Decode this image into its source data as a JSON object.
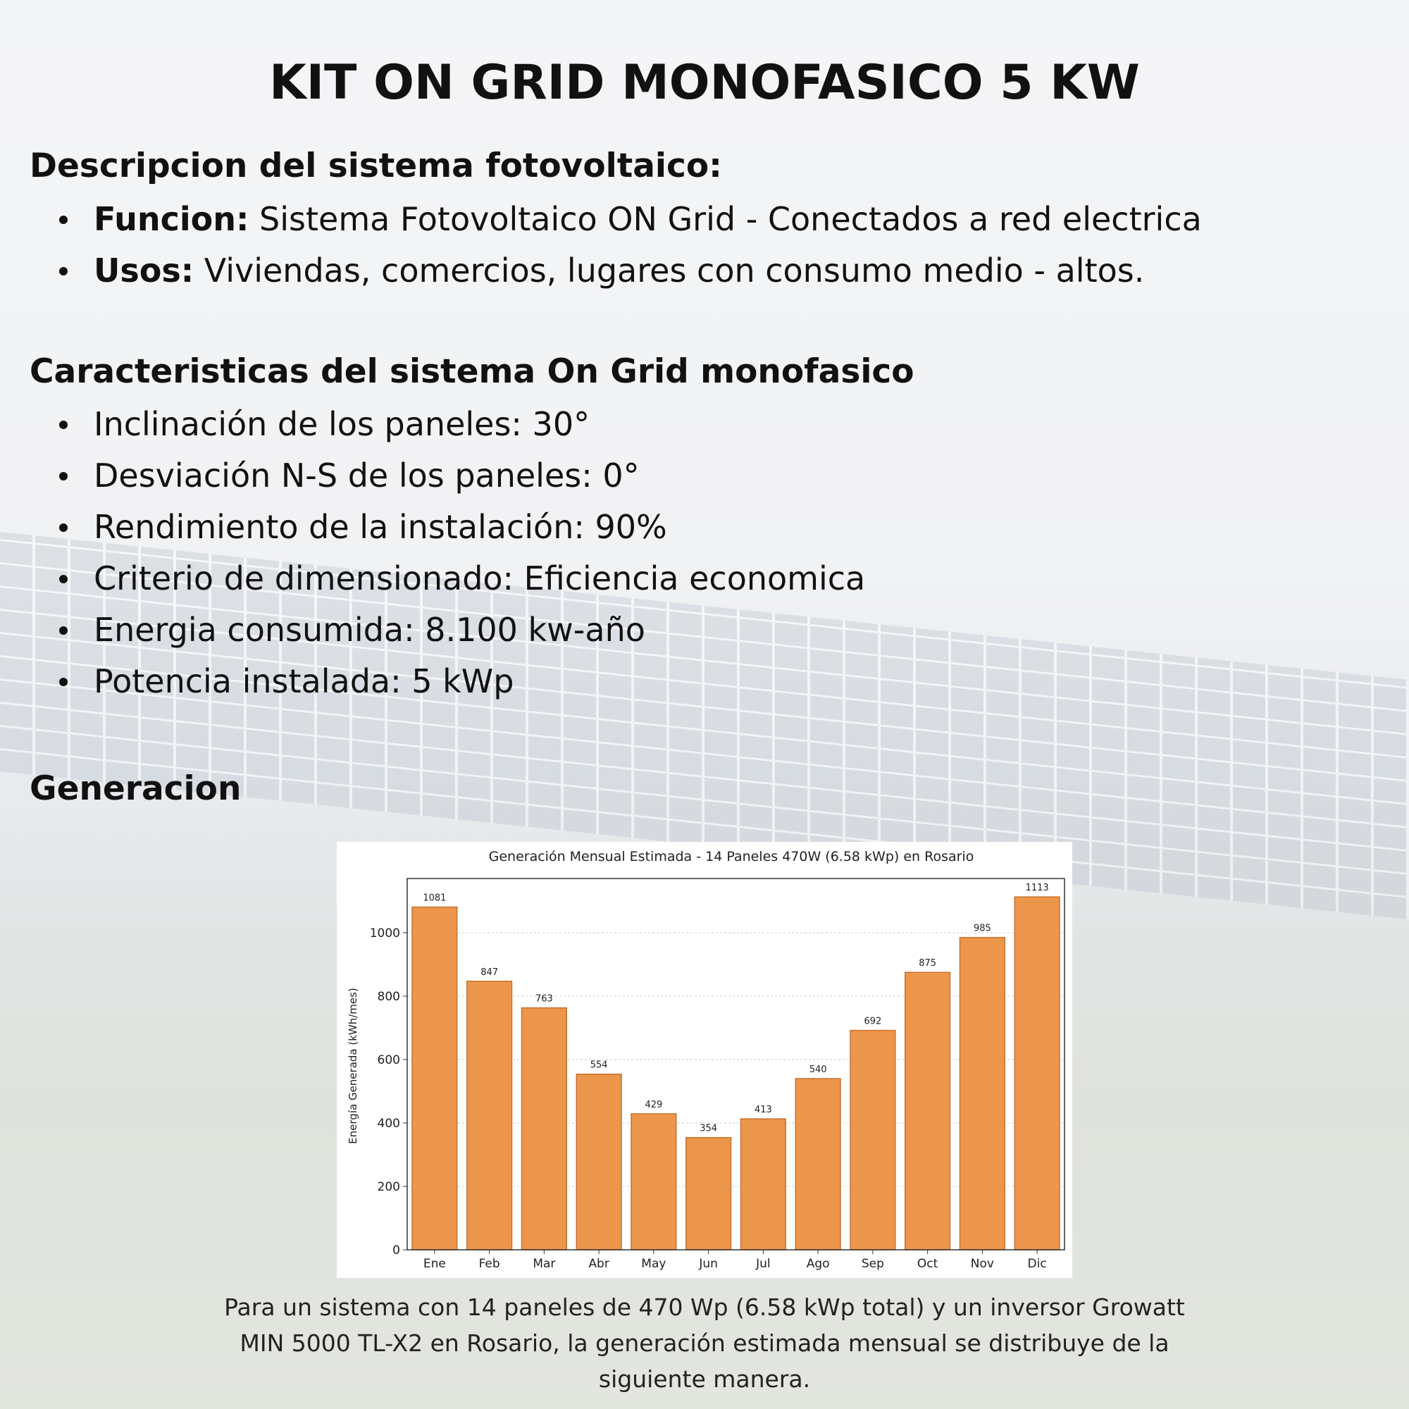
{
  "title": "KIT ON GRID MONOFASICO 5 KW",
  "description": {
    "heading": "Descripcion del sistema fotovoltaico:",
    "items": [
      {
        "label": "Funcion:",
        "value": "Sistema Fotovoltaico ON Grid - Conectados a red electrica"
      },
      {
        "label": "Usos:",
        "value": " Viviendas, comercios, lugares con consumo medio - altos."
      }
    ]
  },
  "features": {
    "heading": "Caracteristicas del sistema On Grid monofasico",
    "items": [
      "Inclinación de los paneles: 30°",
      "Desviación N-S de los paneles: 0°",
      "Rendimiento de la instalación: 90%",
      "Criterio de dimensionado: Eficiencia economica",
      "Energia consumida: 8.100 kw-año",
      "Potencia instalada: 5 kWp"
    ]
  },
  "generation": {
    "heading": "Generacion",
    "caption": "Para un sistema con 14 paneles de 470 Wp (6.58 kWp total) y un inversor Growatt MIN 5000 TL-X2 en Rosario, la generación estimada mensual se distribuye de la siguiente manera."
  },
  "chart_data": {
    "type": "bar",
    "title": "Generación Mensual Estimada - 14 Paneles 470W (6.58 kWp) en Rosario",
    "xlabel": "",
    "ylabel": "Energía Generada (kWh/mes)",
    "categories": [
      "Ene",
      "Feb",
      "Mar",
      "Abr",
      "May",
      "Jun",
      "Jul",
      "Ago",
      "Sep",
      "Oct",
      "Nov",
      "Dic"
    ],
    "values": [
      1081,
      847,
      763,
      554,
      429,
      354,
      413,
      540,
      692,
      875,
      985,
      1113
    ],
    "yticks": [
      0,
      200,
      400,
      600,
      800,
      1000
    ],
    "ylim": [
      0,
      1171
    ],
    "grid": true,
    "bar_color": "#ec964c",
    "edge_color": "#c9722e"
  }
}
